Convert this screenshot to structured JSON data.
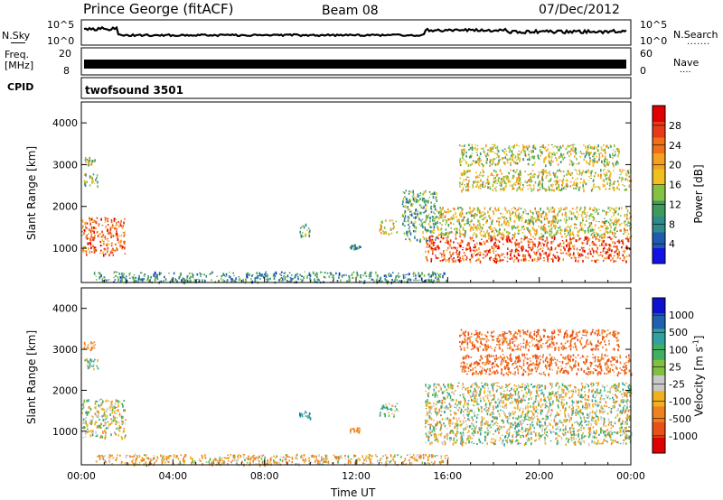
{
  "header": {
    "station": "Prince George (fitACF)",
    "beam": "Beam 08",
    "date": "07/Dec/2012"
  },
  "noise_panel": {
    "left_label": "N.Sky",
    "left_ticks": [
      "10^5",
      "10^0"
    ],
    "right_ticks": [
      "10^5",
      "10^0"
    ],
    "right_label": "N.Search"
  },
  "freq_panel": {
    "left_label_1": "Freq.",
    "left_label_2": "[MHz]",
    "left_ticks": [
      "20",
      "8"
    ],
    "right_ticks": [
      "60",
      "0"
    ],
    "right_label": "Nave"
  },
  "cpid_panel": {
    "label": "CPID",
    "program": "twofsound 3501"
  },
  "colors": {
    "power_scale": [
      "#1212e6",
      "#1e5bb0",
      "#2e8b8b",
      "#3e9a5a",
      "#84c241",
      "#f0c020",
      "#f6a020",
      "#f07018",
      "#e83a18",
      "#e00000"
    ],
    "velocity_scale": [
      "#1010d0",
      "#2060b0",
      "#30a0a0",
      "#40b060",
      "#80c040",
      "#c8c8c8",
      "#f0b020",
      "#f08020",
      "#e85018",
      "#e00000"
    ]
  },
  "chart_data": [
    {
      "type": "heatmap",
      "name": "power",
      "xlabel": "",
      "ylabel": "Slant Range [km]",
      "x_ticks": [
        "00:00",
        "04:00",
        "08:00",
        "12:00",
        "16:00",
        "20:00",
        "00:00"
      ],
      "xlim_hours": [
        0,
        24
      ],
      "y_ticks": [
        1000,
        2000,
        3000,
        4000
      ],
      "ylim": [
        180,
        4500
      ],
      "colorbar_label": "Power [dB]",
      "colorbar_ticks": [
        4,
        8,
        12,
        16,
        20,
        24,
        28
      ],
      "colorbar_range": [
        0,
        30
      ],
      "regions": [
        {
          "t0": 0.0,
          "t1": 1.9,
          "r0": 850,
          "r1": 1750,
          "level": 24
        },
        {
          "t0": 0.1,
          "t1": 0.7,
          "r0": 2500,
          "r1": 2800,
          "level": 12
        },
        {
          "t0": 0.1,
          "t1": 0.6,
          "r0": 3000,
          "r1": 3200,
          "level": 16
        },
        {
          "t0": 0.5,
          "t1": 16.0,
          "r0": 200,
          "r1": 450,
          "level": 8
        },
        {
          "t0": 9.5,
          "t1": 10.0,
          "r0": 1300,
          "r1": 1600,
          "level": 10
        },
        {
          "t0": 11.7,
          "t1": 12.2,
          "r0": 1000,
          "r1": 1100,
          "level": 8
        },
        {
          "t0": 13.0,
          "t1": 13.8,
          "r0": 1350,
          "r1": 1700,
          "level": 16
        },
        {
          "t0": 14.0,
          "t1": 15.5,
          "r0": 1200,
          "r1": 2400,
          "level": 10
        },
        {
          "t0": 15.0,
          "t1": 24.0,
          "r0": 700,
          "r1": 1300,
          "level": 26
        },
        {
          "t0": 15.5,
          "t1": 24.0,
          "r0": 1300,
          "r1": 2000,
          "level": 16
        },
        {
          "t0": 16.5,
          "t1": 24.0,
          "r0": 2400,
          "r1": 2900,
          "level": 16
        },
        {
          "t0": 16.5,
          "t1": 23.5,
          "r0": 3000,
          "r1": 3500,
          "level": 14
        }
      ]
    },
    {
      "type": "heatmap",
      "name": "velocity",
      "xlabel": "Time UT",
      "ylabel": "Slant Range [km]",
      "x_ticks": [
        "00:00",
        "04:00",
        "08:00",
        "12:00",
        "16:00",
        "20:00",
        "00:00"
      ],
      "xlim_hours": [
        0,
        24
      ],
      "y_ticks": [
        1000,
        2000,
        3000,
        4000
      ],
      "ylim": [
        180,
        4500
      ],
      "colorbar_label": "Velocity [m s^-1]",
      "colorbar_ticks": [
        "1000",
        "500",
        "100",
        "25",
        "-25",
        "-100",
        "-500",
        "-1000"
      ],
      "regions": [
        {
          "t0": 0.0,
          "t1": 1.9,
          "r0": 850,
          "r1": 1800,
          "level": 0
        },
        {
          "t0": 0.1,
          "t1": 0.7,
          "r0": 2500,
          "r1": 2800,
          "level": 60
        },
        {
          "t0": 0.1,
          "t1": 0.6,
          "r0": 3000,
          "r1": 3200,
          "level": -150
        },
        {
          "t0": 0.5,
          "t1": 16.0,
          "r0": 200,
          "r1": 450,
          "level": -80
        },
        {
          "t0": 9.5,
          "t1": 10.0,
          "r0": 1300,
          "r1": 1500,
          "level": 200
        },
        {
          "t0": 11.7,
          "t1": 12.2,
          "r0": 1000,
          "r1": 1100,
          "level": -150
        },
        {
          "t0": 13.0,
          "t1": 13.8,
          "r0": 1350,
          "r1": 1700,
          "level": 80
        },
        {
          "t0": 15.0,
          "t1": 24.0,
          "r0": 700,
          "r1": 2200,
          "level": 0
        },
        {
          "t0": 16.5,
          "t1": 24.0,
          "r0": 2400,
          "r1": 2900,
          "level": -300
        },
        {
          "t0": 16.5,
          "t1": 23.5,
          "r0": 3000,
          "r1": 3500,
          "level": -300
        }
      ]
    }
  ],
  "time_axis_label": "Time UT"
}
